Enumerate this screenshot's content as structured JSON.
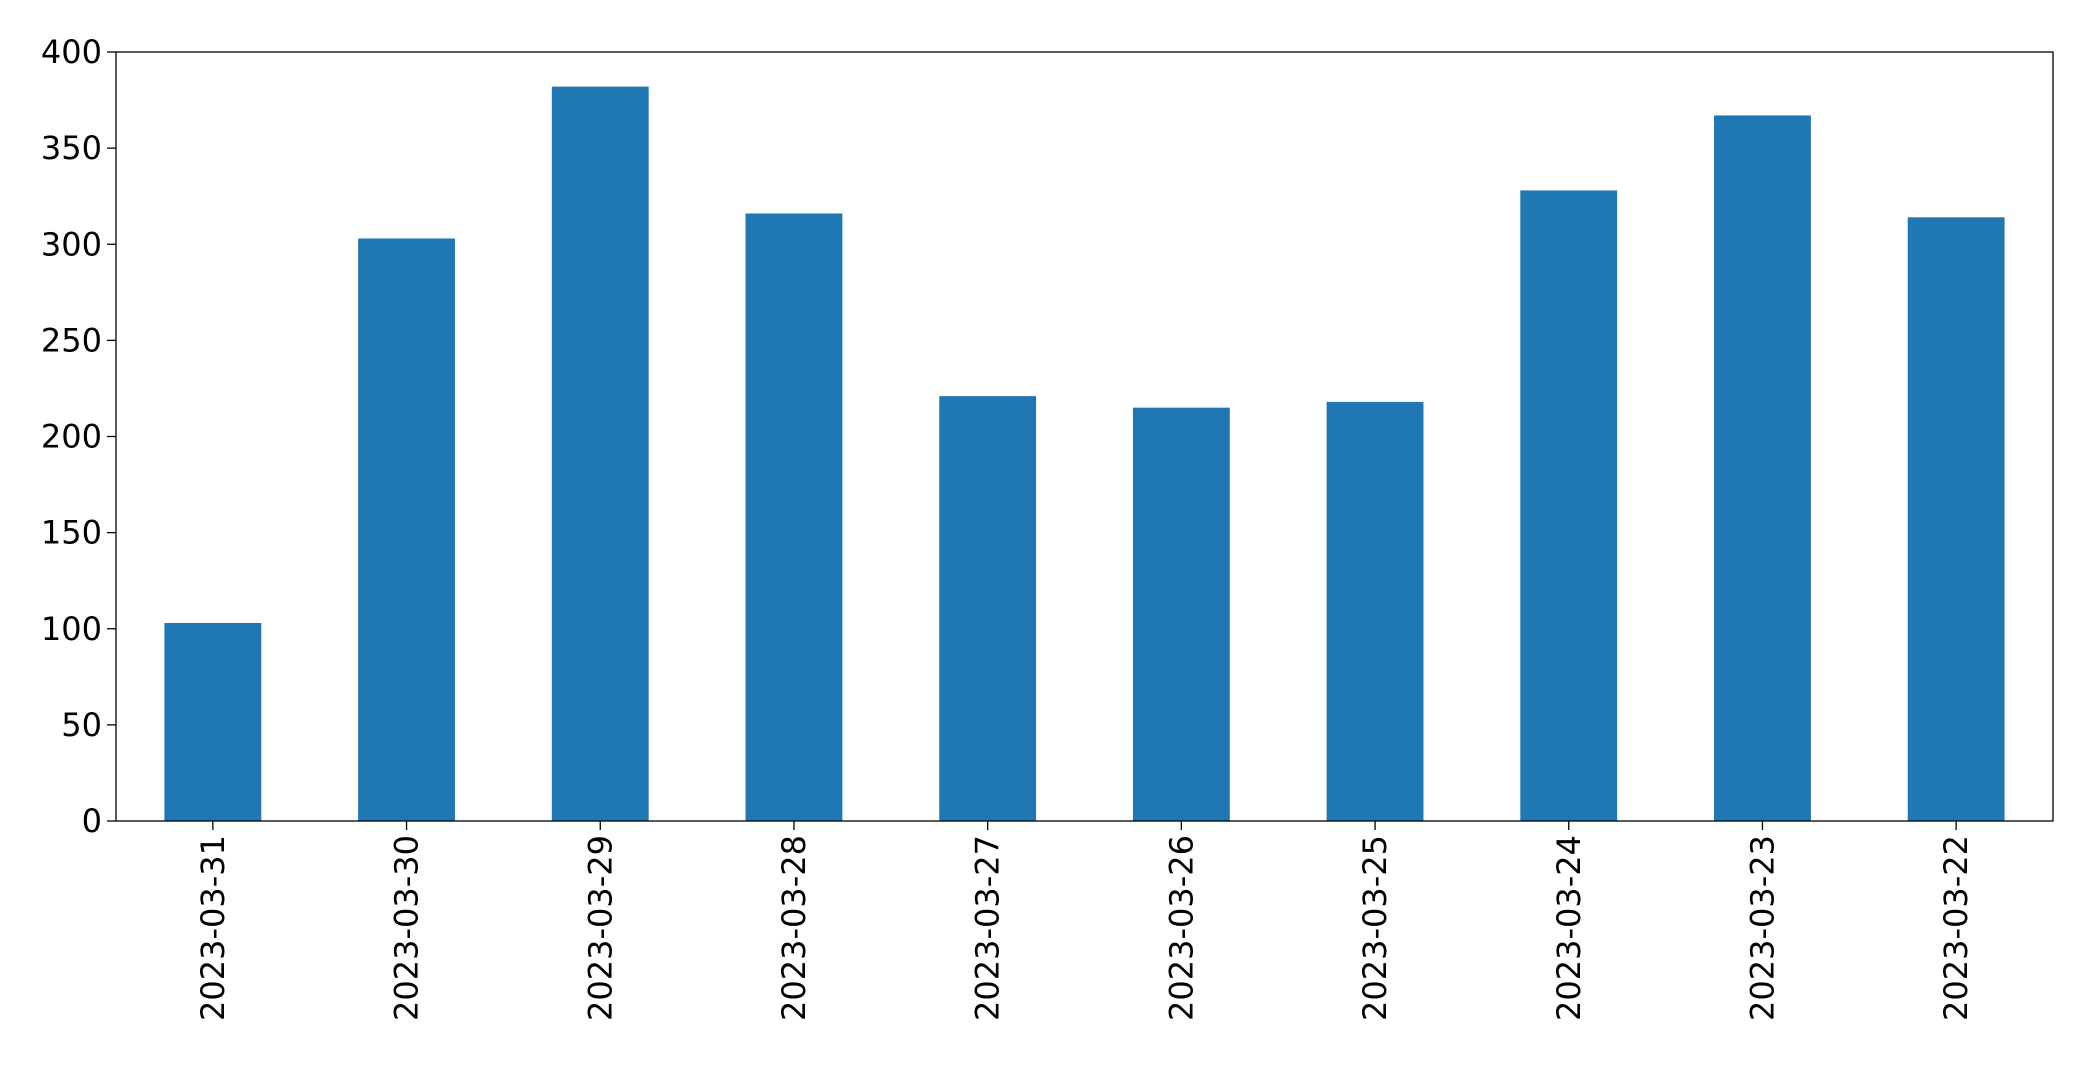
{
  "chart_data": {
    "type": "bar",
    "categories": [
      "2023-03-31",
      "2023-03-30",
      "2023-03-29",
      "2023-03-28",
      "2023-03-27",
      "2023-03-26",
      "2023-03-25",
      "2023-03-24",
      "2023-03-23",
      "2023-03-22"
    ],
    "values": [
      103,
      303,
      382,
      316,
      221,
      215,
      218,
      328,
      367,
      314
    ],
    "color": "#1f77b4",
    "ylim": [
      0,
      400
    ],
    "yticks": [
      0,
      50,
      100,
      150,
      200,
      250,
      300,
      350,
      400
    ],
    "grid": false
  }
}
